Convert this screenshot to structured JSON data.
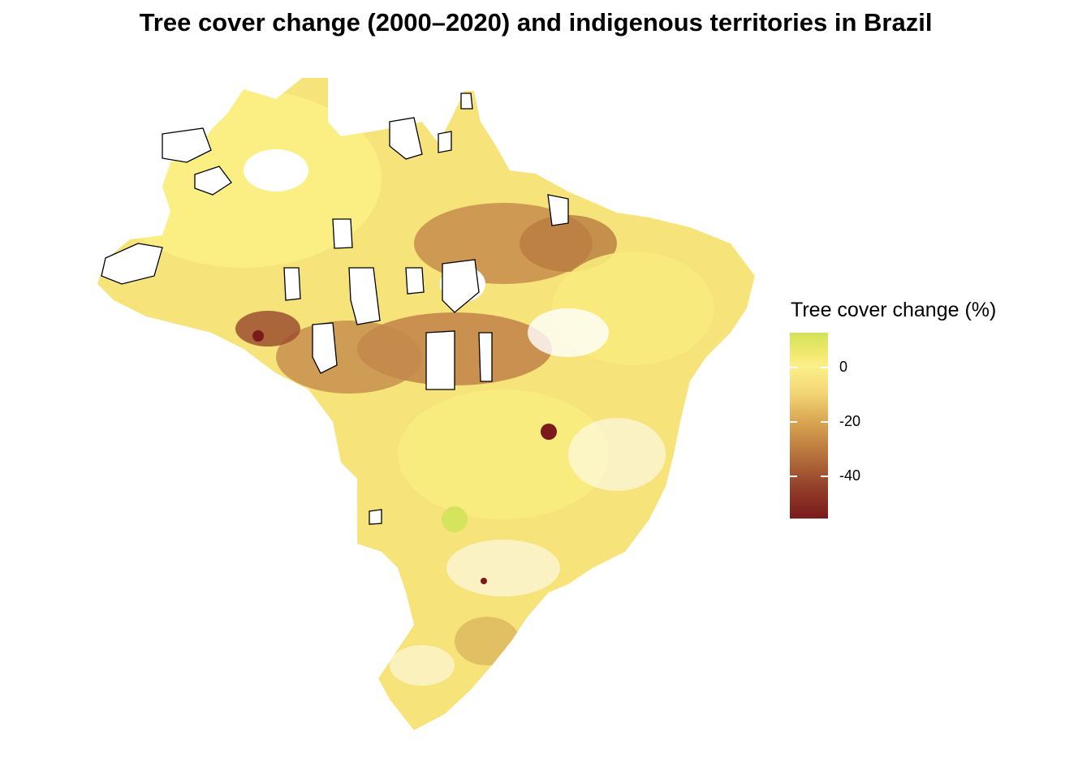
{
  "title": "Tree cover change (2000–2020) and indigenous territories in Brazil",
  "legend": {
    "title": "Tree cover change (%)",
    "ticks": [
      "0",
      "-20",
      "-40"
    ],
    "scale": {
      "min": -55,
      "max": 13,
      "tick_values": [
        0,
        -20,
        -40
      ]
    },
    "colors": {
      "high": "#d2e25a",
      "zero": "#fbf089",
      "low": "#7a1a1a"
    }
  },
  "map": {
    "country": "Brazil",
    "fill_variable": "Tree cover change (%)",
    "outline_layer": "indigenous territories",
    "outline_color": "#000000"
  }
}
